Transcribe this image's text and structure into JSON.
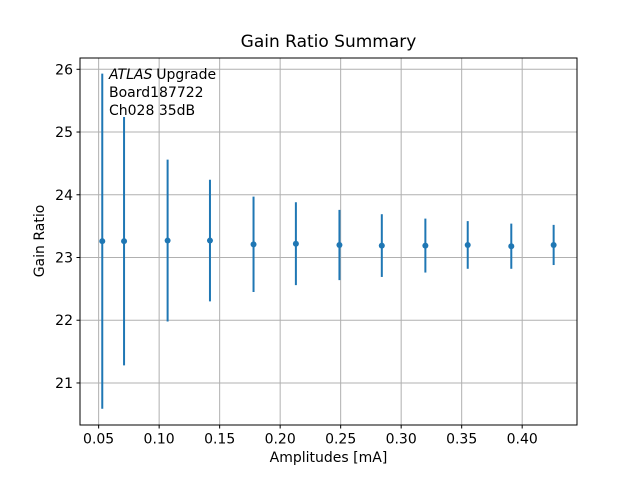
{
  "chart_data": {
    "type": "scatter",
    "subtype": "errorbar",
    "title": "Gain Ratio Summary",
    "xlabel": "Amplitudes [mA]",
    "ylabel": "Gain Ratio",
    "xlim": [
      0.0346,
      0.4453
    ],
    "ylim": [
      20.33,
      26.18
    ],
    "xticks": [
      0.05,
      0.1,
      0.15,
      0.2,
      0.25,
      0.3,
      0.35,
      0.4
    ],
    "xtick_labels": [
      "0.05",
      "0.10",
      "0.15",
      "0.20",
      "0.25",
      "0.30",
      "0.35",
      "0.40"
    ],
    "yticks": [
      21,
      22,
      23,
      24,
      25,
      26
    ],
    "ytick_labels": [
      "21",
      "22",
      "23",
      "24",
      "25",
      "26"
    ],
    "grid": true,
    "legend": null,
    "series": [
      {
        "name": "gain_ratio_vs_amplitude",
        "color": "#1f77b4",
        "marker": "circle",
        "x": [
          0.053,
          0.071,
          0.107,
          0.142,
          0.178,
          0.213,
          0.249,
          0.284,
          0.32,
          0.355,
          0.391,
          0.426
        ],
        "y": [
          23.26,
          23.26,
          23.27,
          23.27,
          23.21,
          23.22,
          23.2,
          23.19,
          23.19,
          23.2,
          23.18,
          23.2
        ],
        "yerr": [
          2.67,
          1.98,
          1.29,
          0.97,
          0.76,
          0.66,
          0.56,
          0.5,
          0.43,
          0.38,
          0.36,
          0.32
        ]
      }
    ],
    "annotation": {
      "line1_italic": "ATLAS",
      "line1_rest": "Upgrade",
      "line2": "Board187722",
      "line3": "Ch028 35dB"
    },
    "colors": {
      "series": "#1f77b4",
      "grid": "#b0b0b0",
      "spine": "#000000",
      "text": "#000000",
      "background": "#ffffff"
    }
  }
}
